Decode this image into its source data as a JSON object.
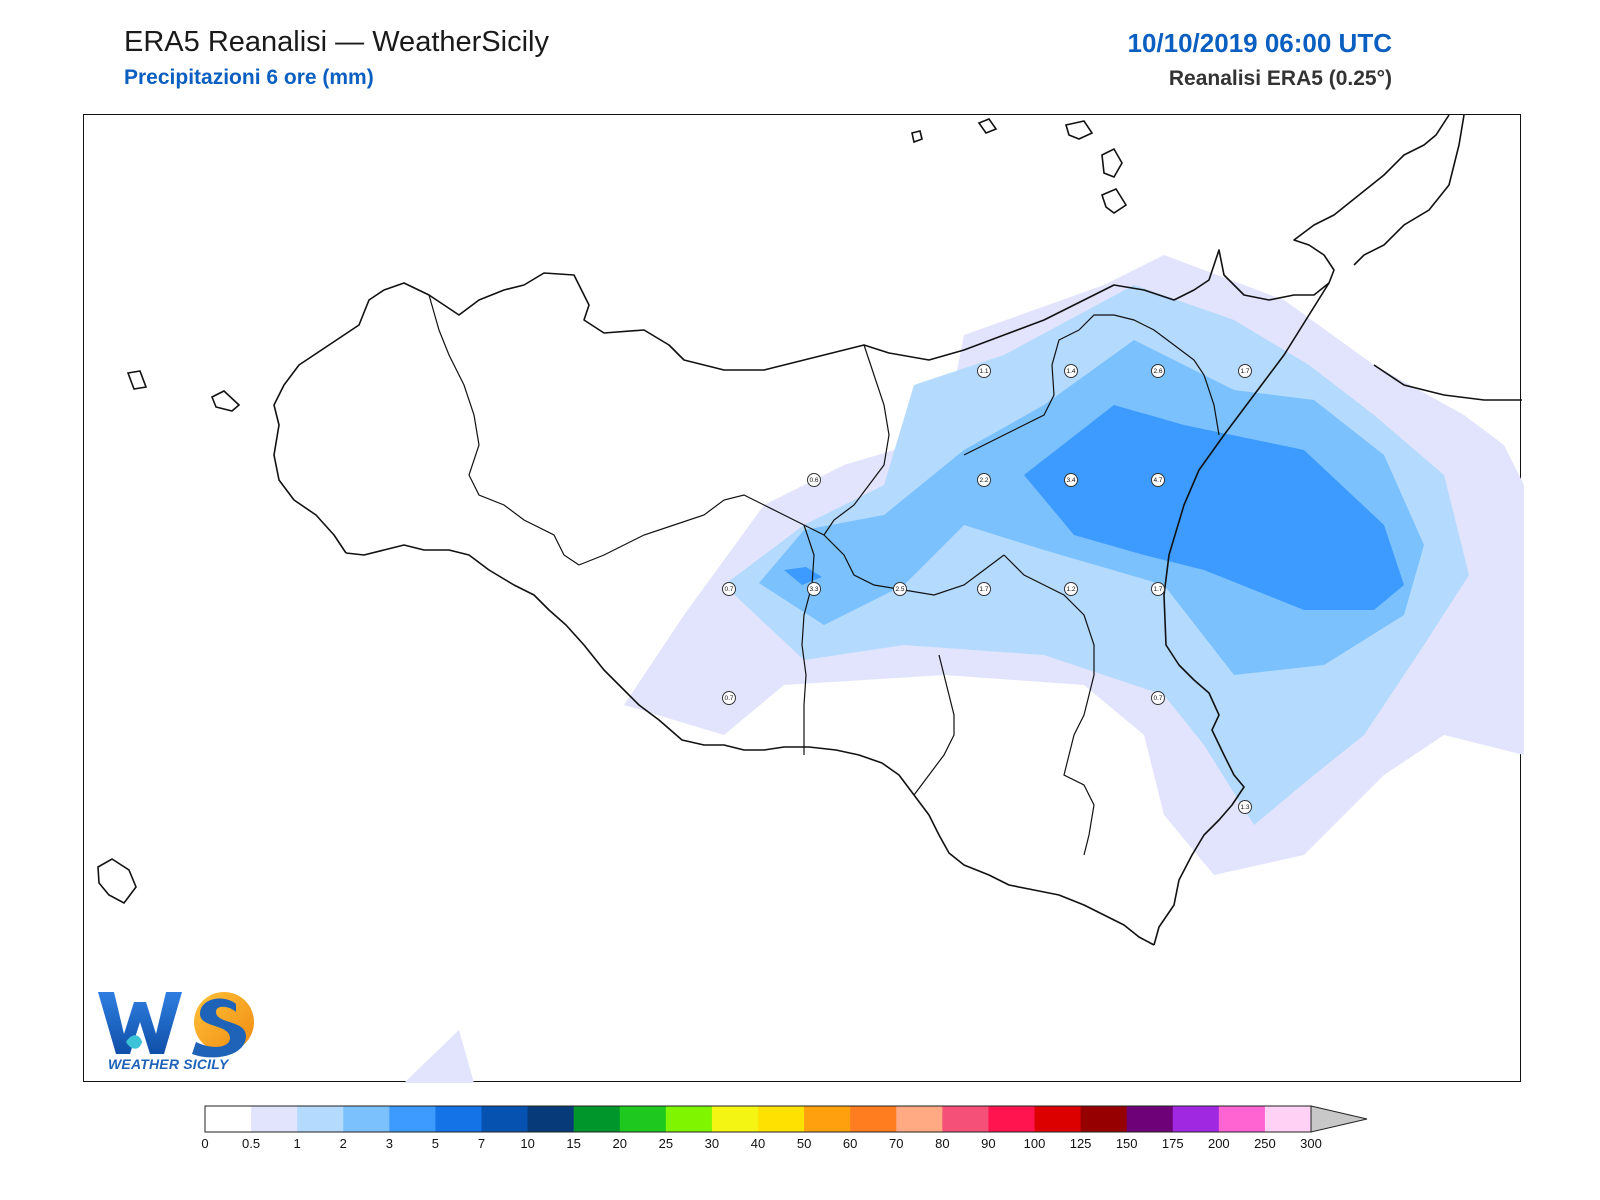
{
  "header": {
    "title": "ERA5 Reanalisi — WeatherSicily",
    "subtitle": "Precipitazioni 6 ore (mm)",
    "timestamp": "10/10/2019 06:00 UTC",
    "source": "Reanalisi ERA5 (0.25°)"
  },
  "logo": {
    "text": "WEATHER SICILY",
    "icon": "weather-sicily-logo"
  },
  "colorbar": {
    "colors": [
      "#ffffff",
      "#e1e4fc",
      "#b4dafe",
      "#7ac1fe",
      "#3d9bff",
      "#1473e6",
      "#0552b0",
      "#073a78",
      "#00962b",
      "#1ec81e",
      "#7ff500",
      "#f5f514",
      "#ffe100",
      "#ffa00f",
      "#ff7d1e",
      "#ffaa82",
      "#f55078",
      "#ff1450",
      "#dc0000",
      "#960000",
      "#6e0078",
      "#a028e1",
      "#ff64d2",
      "#ffd2f5"
    ],
    "overflow_color": "#c8c8c8",
    "ticks": [
      "0",
      "0.5",
      "1",
      "2",
      "3",
      "5",
      "7",
      "10",
      "15",
      "20",
      "25",
      "30",
      "40",
      "50",
      "60",
      "70",
      "80",
      "90",
      "100",
      "125",
      "150",
      "175",
      "200",
      "250",
      "300"
    ]
  },
  "stations": [
    {
      "value": "1.1"
    },
    {
      "value": "1.4"
    },
    {
      "value": "2.6"
    },
    {
      "value": "1.7"
    },
    {
      "value": "0.6"
    },
    {
      "value": "2.2"
    },
    {
      "value": "3.4"
    },
    {
      "value": "4.7"
    },
    {
      "value": "0.7"
    },
    {
      "value": "3.3"
    },
    {
      "value": "2.5"
    },
    {
      "value": "1.7"
    },
    {
      "value": "1.2"
    },
    {
      "value": "1.7"
    },
    {
      "value": "0.7"
    },
    {
      "value": "0.7"
    },
    {
      "value": "1.3"
    }
  ]
}
